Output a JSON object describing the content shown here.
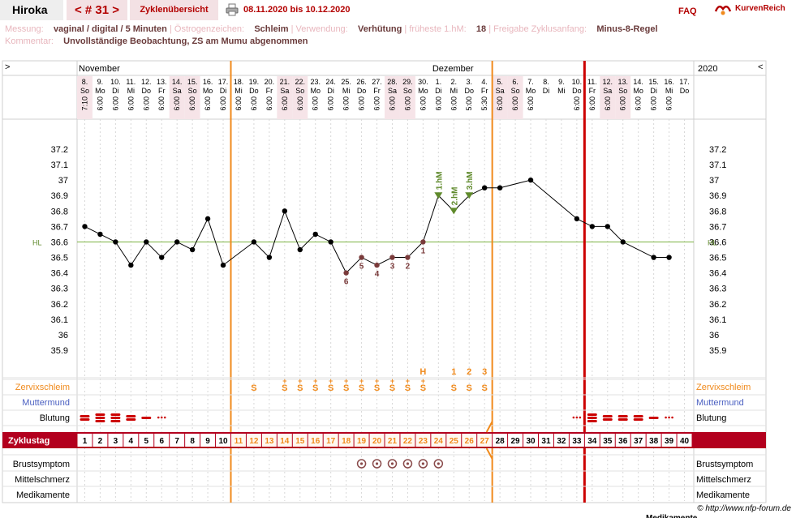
{
  "header": {
    "user": "Hiroka",
    "cycle_nav": "< # 31 >",
    "overview_tab": "Zyklenübersicht",
    "date_range": "08.11.2020 bis 10.12.2020",
    "faq": "FAQ",
    "logo": "KurvenReich"
  },
  "meta": {
    "messung_label": "Messung:",
    "messung_value": "vaginal / digital / 5 Minuten",
    "oestrogen_label": "Östrogenzeichen:",
    "oestrogen_value": "Schleim",
    "verwendung_label": "Verwendung:",
    "verwendung_value": "Verhütung",
    "fruehe_label": "früheste 1.hM:",
    "fruehe_value": "18",
    "freigabe_label": "Freigabe Zyklusanfang:",
    "freigabe_value": "Minus-8-Regel",
    "kommentar_label": "Kommentar:",
    "kommentar_value": "Unvollständige Beobachtung, ZS am Mumu abgenommen"
  },
  "chart_data": {
    "type": "line",
    "year": "2020",
    "nav_left": ">",
    "nav_right": "<",
    "month_labels": [
      {
        "day": 1,
        "label": "November"
      },
      {
        "day": 24,
        "label": "Dezember"
      }
    ],
    "days": [
      {
        "cd": "1",
        "date": "8.",
        "wd": "So",
        "time": "7:10",
        "temp": 36.7
      },
      {
        "cd": "2",
        "date": "9.",
        "wd": "Mo",
        "time": "6:00",
        "temp": 36.65
      },
      {
        "cd": "3",
        "date": "10.",
        "wd": "Di",
        "time": "6:00",
        "temp": 36.6
      },
      {
        "cd": "4",
        "date": "11.",
        "wd": "Mi",
        "time": "6:00",
        "temp": 36.45
      },
      {
        "cd": "5",
        "date": "12.",
        "wd": "Do",
        "time": "6:00",
        "temp": 36.6
      },
      {
        "cd": "6",
        "date": "13.",
        "wd": "Fr",
        "time": "6:00",
        "temp": 36.5
      },
      {
        "cd": "7",
        "date": "14.",
        "wd": "Sa",
        "time": "6:00",
        "temp": 36.6
      },
      {
        "cd": "8",
        "date": "15.",
        "wd": "So",
        "time": "6:00",
        "temp": 36.55
      },
      {
        "cd": "9",
        "date": "16.",
        "wd": "Mo",
        "time": "6:00",
        "temp": 36.75
      },
      {
        "cd": "10",
        "date": "17.",
        "wd": "Di",
        "time": "6:00",
        "temp": 36.45
      },
      {
        "cd": "11",
        "date": "18.",
        "wd": "Mi",
        "time": "6:00",
        "temp": null
      },
      {
        "cd": "12",
        "date": "19.",
        "wd": "Do",
        "time": "6:00",
        "temp": 36.6
      },
      {
        "cd": "13",
        "date": "20.",
        "wd": "Fr",
        "time": "6:00",
        "temp": 36.5
      },
      {
        "cd": "14",
        "date": "21.",
        "wd": "Sa",
        "time": "6:00",
        "temp": 36.8
      },
      {
        "cd": "15",
        "date": "22.",
        "wd": "So",
        "time": "6:00",
        "temp": 36.55
      },
      {
        "cd": "16",
        "date": "23.",
        "wd": "Mo",
        "time": "6:00",
        "temp": 36.65
      },
      {
        "cd": "17",
        "date": "24.",
        "wd": "Di",
        "time": "6:00",
        "temp": 36.6
      },
      {
        "cd": "18",
        "date": "25.",
        "wd": "Mi",
        "time": "6:00",
        "temp": 36.4
      },
      {
        "cd": "19",
        "date": "26.",
        "wd": "Do",
        "time": "6:00",
        "temp": 36.5
      },
      {
        "cd": "20",
        "date": "27.",
        "wd": "Fr",
        "time": "6:00",
        "temp": 36.45
      },
      {
        "cd": "21",
        "date": "28.",
        "wd": "Sa",
        "time": "6:00",
        "temp": 36.5
      },
      {
        "cd": "22",
        "date": "29.",
        "wd": "So",
        "time": "6:00",
        "temp": 36.5
      },
      {
        "cd": "23",
        "date": "30.",
        "wd": "Mo",
        "time": "6:00",
        "temp": 36.6
      },
      {
        "cd": "24",
        "date": "1.",
        "wd": "Di",
        "time": "6:00",
        "temp": 36.9
      },
      {
        "cd": "25",
        "date": "2.",
        "wd": "Mi",
        "time": "6:00",
        "temp": 36.8
      },
      {
        "cd": "26",
        "date": "3.",
        "wd": "Do",
        "time": "5:00",
        "temp": 36.9
      },
      {
        "cd": "27",
        "date": "4.",
        "wd": "Fr",
        "time": "5:30",
        "temp": 36.95
      },
      {
        "cd": "28",
        "date": "5.",
        "wd": "Sa",
        "time": "6:00",
        "temp": 36.95
      },
      {
        "cd": "29",
        "date": "6.",
        "wd": "So",
        "time": "6:00",
        "temp": null
      },
      {
        "cd": "30",
        "date": "7.",
        "wd": "Mo",
        "time": "6:00",
        "temp": 37.0
      },
      {
        "cd": "31",
        "date": "8.",
        "wd": "Di",
        "time": "",
        "temp": null
      },
      {
        "cd": "32",
        "date": "9.",
        "wd": "Mi",
        "time": "",
        "temp": null
      },
      {
        "cd": "33",
        "date": "10.",
        "wd": "Do",
        "time": "6:00",
        "temp": 36.75
      },
      {
        "cd": "34",
        "date": "11.",
        "wd": "Fr",
        "time": "6:00",
        "temp": 36.7
      },
      {
        "cd": "35",
        "date": "12.",
        "wd": "Sa",
        "time": "6:00",
        "temp": 36.7
      },
      {
        "cd": "36",
        "date": "13.",
        "wd": "So",
        "time": "6:00",
        "temp": 36.6
      },
      {
        "cd": "37",
        "date": "14.",
        "wd": "Mo",
        "time": "6:00",
        "temp": null
      },
      {
        "cd": "38",
        "date": "15.",
        "wd": "Di",
        "time": "6:00",
        "temp": 36.5
      },
      {
        "cd": "39",
        "date": "16.",
        "wd": "Mi",
        "time": "6:00",
        "temp": 36.5
      },
      {
        "cd": "40",
        "date": "17.",
        "wd": "Do",
        "time": "",
        "temp": null
      }
    ],
    "weekend_days": [
      1,
      7,
      8,
      14,
      15,
      21,
      22,
      28,
      29,
      35,
      36
    ],
    "y_ticks": [
      37.2,
      37.1,
      37.0,
      36.9,
      36.8,
      36.7,
      36.6,
      36.5,
      36.4,
      36.3,
      36.2,
      36.1,
      36.0,
      35.9
    ],
    "y_tick_labels": [
      "37.2",
      "37.1",
      "37",
      "36.9",
      "36.8",
      "36.7",
      "36.6",
      "36.5",
      "36.4",
      "36.3",
      "36.2",
      "36.1",
      "36",
      "35.9"
    ],
    "ylim": [
      35.9,
      37.2
    ],
    "hl_value": 36.6,
    "hl_label": "HL",
    "low_labels": [
      {
        "day": 18,
        "text": "6"
      },
      {
        "day": 19,
        "text": "5"
      },
      {
        "day": 20,
        "text": "4"
      },
      {
        "day": 21,
        "text": "3"
      },
      {
        "day": 22,
        "text": "2"
      },
      {
        "day": 23,
        "text": "1"
      }
    ],
    "high_markers": [
      {
        "day": 24,
        "text": "1.hM"
      },
      {
        "day": 25,
        "text": "2.hM"
      },
      {
        "day": 26,
        "text": "3.hM"
      }
    ],
    "peak_marks": [
      {
        "day": 23,
        "text": "H"
      },
      {
        "day": 25,
        "text": "1"
      },
      {
        "day": 26,
        "text": "2"
      },
      {
        "day": 27,
        "text": "3"
      }
    ],
    "mucus": [
      {
        "day": 12,
        "text": "S"
      },
      {
        "day": 14,
        "text": "S+"
      },
      {
        "day": 15,
        "text": "S+"
      },
      {
        "day": 16,
        "text": "S+"
      },
      {
        "day": 17,
        "text": "S+"
      },
      {
        "day": 18,
        "text": "S+"
      },
      {
        "day": 19,
        "text": "S+"
      },
      {
        "day": 20,
        "text": "S+"
      },
      {
        "day": 21,
        "text": "S+"
      },
      {
        "day": 22,
        "text": "S+"
      },
      {
        "day": 23,
        "text": "S+"
      },
      {
        "day": 25,
        "text": "S"
      },
      {
        "day": 26,
        "text": "S"
      },
      {
        "day": 27,
        "text": "S"
      }
    ],
    "bleeding": [
      {
        "day": 1,
        "level": "medium"
      },
      {
        "day": 2,
        "level": "heavy"
      },
      {
        "day": 3,
        "level": "heavy"
      },
      {
        "day": 4,
        "level": "medium"
      },
      {
        "day": 5,
        "level": "light"
      },
      {
        "day": 6,
        "level": "spotting"
      },
      {
        "day": 33,
        "level": "spotting"
      },
      {
        "day": 34,
        "level": "heavy"
      },
      {
        "day": 35,
        "level": "medium"
      },
      {
        "day": 36,
        "level": "medium"
      },
      {
        "day": 37,
        "level": "medium"
      },
      {
        "day": 38,
        "level": "light"
      },
      {
        "day": 39,
        "level": "spotting"
      }
    ],
    "breast_days": [
      19,
      20,
      21,
      22,
      23,
      24
    ],
    "row_labels": {
      "zervix": "Zervixschleim",
      "muttermund": "Muttermund",
      "blutung": "Blutung",
      "zyklustag": "Zyklustag",
      "brust": "Brustsymptom",
      "mittel": "Mittelschmerz",
      "medi": "Medikamente"
    },
    "vertical_lines": [
      {
        "after_day": 10,
        "color": "#f08a1c"
      },
      {
        "after_day": 27,
        "color": "#f08a1c"
      },
      {
        "after_day": 33,
        "color": "#cc0000"
      }
    ],
    "colors": {
      "accent": "#b30000",
      "orange": "#f08a1c",
      "cycle_bar": "#b3001e",
      "hl_line": "#7cb342",
      "low_marker": "#7a3b3b",
      "high_marker": "#5f8a2b",
      "muttermund": "#4a5fc1"
    }
  },
  "footer": {
    "copyright": "© http://www.nfp-forum.de",
    "cut_label": "Medikamente"
  }
}
